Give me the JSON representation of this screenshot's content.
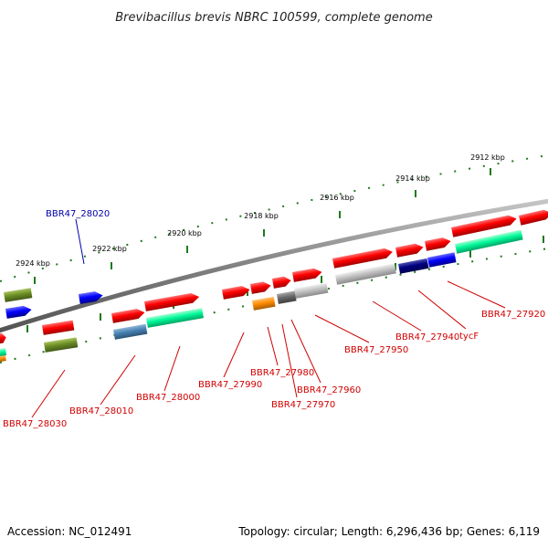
{
  "title": "Brevibacillus brevis NBRC 100599, complete genome",
  "footer": {
    "accession": "Accession: NC_012491",
    "summary": "Topology: circular; Length: 6,296,436 bp; Genes: 6,119"
  },
  "colors": {
    "backbone": "#808080",
    "tick": "#1e7a1e",
    "label_red": "#d00000",
    "label_blue": "#0000aa"
  },
  "ticks": [
    {
      "label": "2912 kbp"
    },
    {
      "label": "2914 kbp"
    },
    {
      "label": "2916 kbp"
    },
    {
      "label": "2918 kbp"
    },
    {
      "label": "2920 kbp"
    },
    {
      "label": "2922 kbp"
    },
    {
      "label": "2924 kbp"
    }
  ],
  "labels": [
    {
      "text": "BBR47_28020",
      "color": "blue"
    },
    {
      "text": "BBR47_28030",
      "color": "red"
    },
    {
      "text": "BBR47_28010",
      "color": "red"
    },
    {
      "text": "BBR47_28000",
      "color": "red"
    },
    {
      "text": "BBR47_27990",
      "color": "red"
    },
    {
      "text": "BBR47_27980",
      "color": "red"
    },
    {
      "text": "BBR47_27970",
      "color": "red"
    },
    {
      "text": "BBR47_27960",
      "color": "red"
    },
    {
      "text": "BBR47_27950",
      "color": "red"
    },
    {
      "text": "BBR47_27940",
      "color": "red"
    },
    {
      "text": "tycF",
      "color": "red"
    },
    {
      "text": "BBR47_27920",
      "color": "red"
    }
  ],
  "features": [
    {
      "color": "#ff0000",
      "strand": "forward"
    },
    {
      "color": "#0000ff",
      "strand": "forward"
    },
    {
      "color": "#6b8e23",
      "strand": "none"
    },
    {
      "color": "#4682b4",
      "strand": "none"
    },
    {
      "color": "#00fa9a",
      "strand": "none"
    },
    {
      "color": "#ff8c00",
      "strand": "none"
    },
    {
      "color": "#696969",
      "strand": "none"
    },
    {
      "color": "#c0c0c0",
      "strand": "none"
    },
    {
      "color": "#000080",
      "strand": "none"
    }
  ]
}
